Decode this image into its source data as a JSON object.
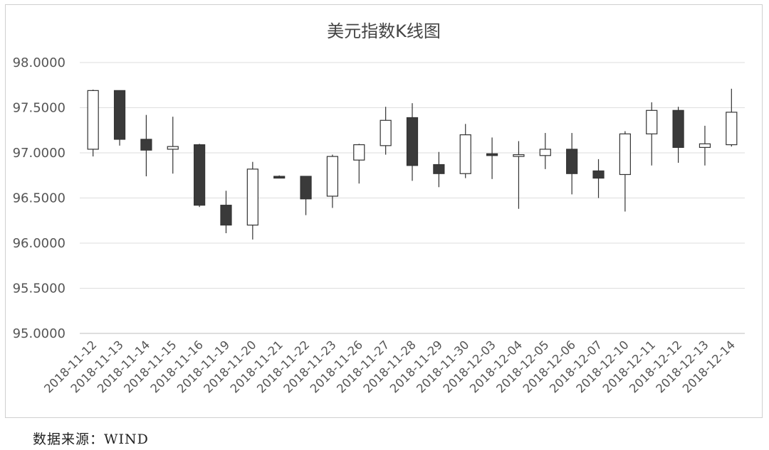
{
  "chart_data": {
    "type": "candlestick",
    "title": "美元指数K线图",
    "xlabel": "",
    "ylabel": "",
    "ylim": [
      95.0,
      98.0
    ],
    "y_ticks": [
      "98.0000",
      "97.5000",
      "97.0000",
      "96.5000",
      "96.0000",
      "95.5000",
      "95.0000"
    ],
    "grid": true,
    "up_color": "#ffffff",
    "down_color": "#3a3a3a",
    "categories": [
      "2018-11-12",
      "2018-11-13",
      "2018-11-14",
      "2018-11-15",
      "2018-11-16",
      "2018-11-19",
      "2018-11-20",
      "2018-11-21",
      "2018-11-22",
      "2018-11-23",
      "2018-11-26",
      "2018-11-27",
      "2018-11-28",
      "2018-11-29",
      "2018-11-30",
      "2018-12-03",
      "2018-12-04",
      "2018-12-05",
      "2018-12-06",
      "2018-12-07",
      "2018-12-10",
      "2018-12-11",
      "2018-12-12",
      "2018-12-13",
      "2018-12-14"
    ],
    "open": [
      97.04,
      97.69,
      97.15,
      97.04,
      97.09,
      96.42,
      96.2,
      96.74,
      96.74,
      96.52,
      96.92,
      97.08,
      97.39,
      96.87,
      96.77,
      96.99,
      96.97,
      96.97,
      97.04,
      96.8,
      96.76,
      97.21,
      97.47,
      97.06,
      97.09
    ],
    "high": [
      97.7,
      97.69,
      97.42,
      97.4,
      97.1,
      96.58,
      96.9,
      96.75,
      96.74,
      96.98,
      97.1,
      97.51,
      97.55,
      97.01,
      97.32,
      97.17,
      97.13,
      97.22,
      97.22,
      96.93,
      97.24,
      97.56,
      97.51,
      97.3,
      97.71
    ],
    "low": [
      96.96,
      97.08,
      96.74,
      96.77,
      96.4,
      96.11,
      96.04,
      96.73,
      96.31,
      96.39,
      96.66,
      96.98,
      96.69,
      96.62,
      96.72,
      96.71,
      96.38,
      96.82,
      96.54,
      96.5,
      96.35,
      96.86,
      96.89,
      96.86,
      97.07
    ],
    "close": [
      97.69,
      97.15,
      97.03,
      97.07,
      96.42,
      96.2,
      96.82,
      96.73,
      96.49,
      96.96,
      97.09,
      97.36,
      96.86,
      96.77,
      97.2,
      96.97,
      96.98,
      97.04,
      96.77,
      96.72,
      97.21,
      97.47,
      97.06,
      97.1,
      97.45
    ]
  },
  "source_note": "数据来源：WIND"
}
